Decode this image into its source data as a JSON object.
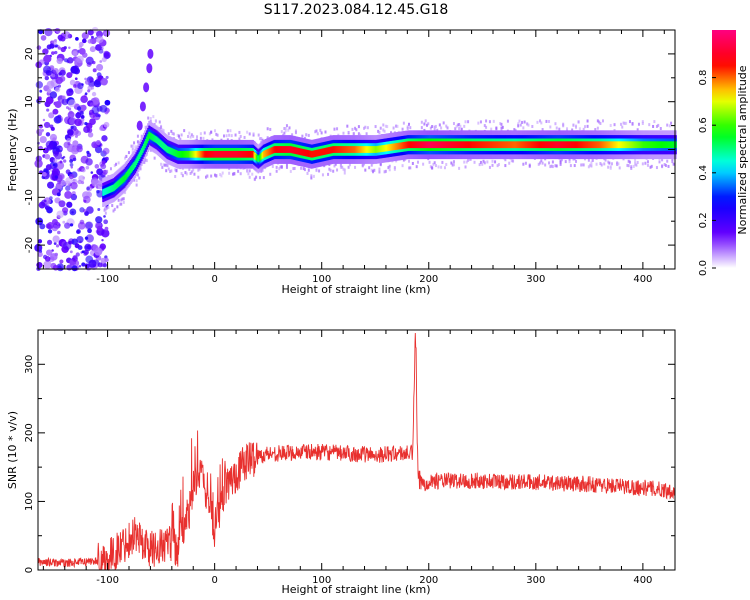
{
  "title": "S117.2023.084.12.45.G18",
  "chart_data": [
    {
      "type": "heatmap",
      "xlabel": "Height of straight line (km)",
      "ylabel": "Frequency (Hz)",
      "xlim": [
        -165,
        430
      ],
      "ylim": [
        -25,
        25
      ],
      "xticks": [
        -100,
        0,
        100,
        200,
        300,
        400
      ],
      "yticks": [
        -20,
        -10,
        0,
        10,
        20
      ],
      "colorbar": {
        "label": "Normalized spectral amplitude",
        "range": [
          0,
          1
        ],
        "ticks": [
          0.0,
          0.2,
          0.4,
          0.6,
          0.8
        ],
        "colors": [
          "#ffffff",
          "#6600ff",
          "#0000ff",
          "#00ffff",
          "#00ff00",
          "#ffff00",
          "#ff0000",
          "#ff0080"
        ]
      },
      "ridge_x": [
        -105,
        -95,
        -85,
        -75,
        -68,
        -62,
        -55,
        -45,
        -35,
        -25,
        -10,
        0,
        20,
        35,
        40,
        45,
        55,
        70,
        90,
        110,
        130,
        150,
        180,
        200,
        240,
        280,
        320,
        360,
        400,
        430
      ],
      "ridge_y": [
        -9,
        -8,
        -6,
        -3,
        0,
        3,
        2,
        0,
        -1,
        -1,
        -1,
        -1,
        -1,
        -1,
        -2,
        -1,
        0,
        0,
        -1,
        0,
        0,
        0,
        1,
        1,
        1,
        1,
        1,
        1,
        1,
        1
      ],
      "ridge_amp": [
        0.45,
        0.5,
        0.55,
        0.5,
        0.5,
        0.55,
        0.5,
        0.5,
        0.55,
        0.6,
        0.85,
        0.9,
        0.9,
        0.85,
        0.5,
        0.75,
        0.85,
        0.9,
        0.85,
        0.85,
        0.8,
        0.65,
        0.85,
        0.95,
        0.85,
        0.8,
        0.9,
        0.8,
        0.6,
        0.55
      ],
      "branch_x": [
        -70,
        -67,
        -64,
        -61,
        -60
      ],
      "branch_y": [
        5,
        9,
        13,
        17,
        20
      ]
    },
    {
      "type": "line",
      "xlabel": "Height of straight line (km)",
      "ylabel": "SNR (10 * v/v)",
      "xlim": [
        -165,
        430
      ],
      "ylim": [
        0,
        350
      ],
      "xticks": [
        -100,
        0,
        100,
        200,
        300,
        400
      ],
      "yticks": [
        0,
        100,
        200,
        300
      ],
      "color": "#e8302e",
      "series": [
        {
          "x": [
            -165,
            -140,
            -120,
            -100,
            -90,
            -80,
            -75,
            -70,
            -60,
            -50,
            -40,
            -35,
            -30,
            -25,
            -20,
            -15,
            -10,
            -5,
            0,
            5,
            10,
            20,
            30,
            40,
            50,
            60,
            80,
            100,
            120,
            150,
            170,
            185,
            187,
            188,
            189,
            190,
            195,
            200,
            250,
            300,
            350,
            400,
            430
          ],
          "y": [
            12,
            10,
            12,
            15,
            30,
            45,
            55,
            45,
            30,
            35,
            40,
            25,
            60,
            80,
            110,
            150,
            120,
            100,
            60,
            90,
            120,
            140,
            160,
            165,
            170,
            170,
            172,
            172,
            170,
            168,
            170,
            170,
            320,
            340,
            200,
            130,
            125,
            130,
            130,
            128,
            125,
            120,
            115
          ]
        }
      ]
    }
  ]
}
